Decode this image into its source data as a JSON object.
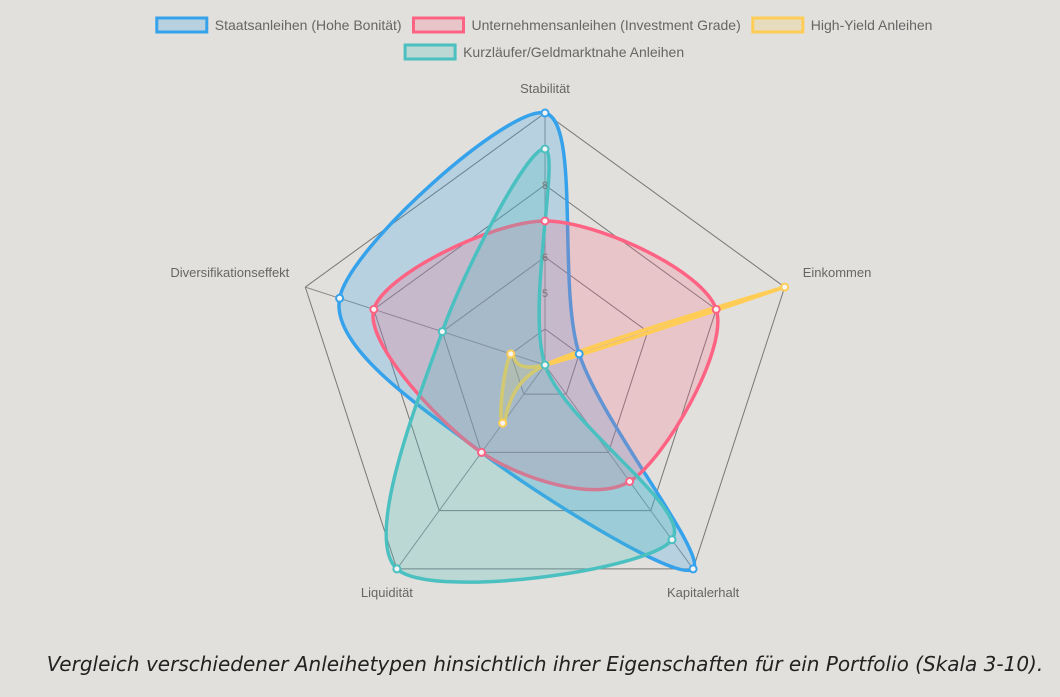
{
  "chart_data": {
    "type": "radar",
    "caption": "Vergleich verschiedener Anleihetypen hinsichtlich ihrer Eigenschaften für ein Portfolio (Skala 3-10).",
    "axes": [
      "Stabilität",
      "Einkommen",
      "Kapitalerhalt",
      "Liquidität",
      "Diversifikationseffekt"
    ],
    "scale": {
      "min": 3,
      "max": 10,
      "tick_labels": [
        5,
        6,
        8
      ],
      "grid_levels": [
        4,
        6,
        8,
        10
      ]
    },
    "legend_position": "top",
    "series": [
      {
        "name": "Staatsanleihen (Hohe Bonität)",
        "color": "#36a2eb",
        "fill": "rgba(54,162,235,0.25)",
        "values": [
          10,
          4,
          10,
          6,
          9
        ]
      },
      {
        "name": "Unternehmensanleihen (Investment Grade)",
        "color": "#ff6384",
        "fill": "rgba(255,99,132,0.22)",
        "values": [
          7,
          8,
          7,
          6,
          8
        ]
      },
      {
        "name": "High-Yield Anleihen",
        "color": "#ffcd56",
        "fill": "rgba(255,205,86,0.22)",
        "values": [
          3,
          10,
          3,
          5,
          4
        ]
      },
      {
        "name": "Kurzläufer/Geldmarktnahe Anleihen",
        "color": "#4bc0c0",
        "fill": "rgba(75,192,192,0.25)",
        "values": [
          9,
          3,
          9,
          10,
          6
        ]
      }
    ]
  }
}
